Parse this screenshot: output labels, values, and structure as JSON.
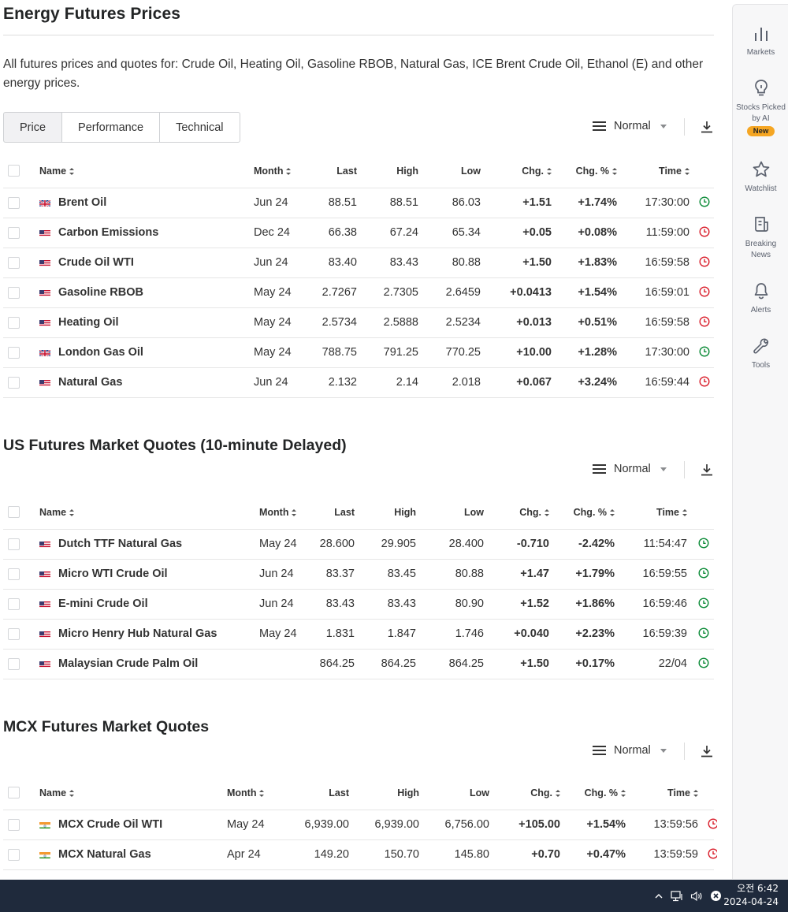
{
  "page": {
    "title": "Energy Futures Prices",
    "description": "All futures prices and quotes for: Crude Oil, Heating Oil, Gasoline RBOB, Natural Gas, ICE Brent Crude Oil, Ethanol (E) and other energy prices."
  },
  "tabs": [
    {
      "label": "Price",
      "active": true
    },
    {
      "label": "Performance",
      "active": false
    },
    {
      "label": "Technical",
      "active": false
    }
  ],
  "view_mode": "Normal",
  "columns": [
    "Name",
    "Month",
    "Last",
    "High",
    "Low",
    "Chg.",
    "Chg. %",
    "Time"
  ],
  "colors": {
    "up": "#0a8a36",
    "down": "#d91e2b",
    "open_clock": "#0a8a36",
    "closed_clock": "#d91e2b"
  },
  "energy": {
    "rows": [
      {
        "flag": "uk",
        "name": "Brent Oil",
        "month": "Jun 24",
        "last": "88.51",
        "high": "88.51",
        "low": "86.03",
        "chg": "+1.51",
        "chg_pct": "+1.74%",
        "time": "17:30:00",
        "dir": "up",
        "clock": "open"
      },
      {
        "flag": "us",
        "name": "Carbon Emissions",
        "month": "Dec 24",
        "last": "66.38",
        "high": "67.24",
        "low": "65.34",
        "chg": "+0.05",
        "chg_pct": "+0.08%",
        "time": "11:59:00",
        "dir": "up",
        "clock": "closed"
      },
      {
        "flag": "us",
        "name": "Crude Oil WTI",
        "month": "Jun 24",
        "last": "83.40",
        "high": "83.43",
        "low": "80.88",
        "chg": "+1.50",
        "chg_pct": "+1.83%",
        "time": "16:59:58",
        "dir": "up",
        "clock": "closed"
      },
      {
        "flag": "us",
        "name": "Gasoline RBOB",
        "month": "May 24",
        "last": "2.7267",
        "high": "2.7305",
        "low": "2.6459",
        "chg": "+0.0413",
        "chg_pct": "+1.54%",
        "time": "16:59:01",
        "dir": "up",
        "clock": "closed"
      },
      {
        "flag": "us",
        "name": "Heating Oil",
        "month": "May 24",
        "last": "2.5734",
        "high": "2.5888",
        "low": "2.5234",
        "chg": "+0.013",
        "chg_pct": "+0.51%",
        "time": "16:59:58",
        "dir": "up",
        "clock": "closed"
      },
      {
        "flag": "uk",
        "name": "London Gas Oil",
        "month": "May 24",
        "last": "788.75",
        "high": "791.25",
        "low": "770.25",
        "chg": "+10.00",
        "chg_pct": "+1.28%",
        "time": "17:30:00",
        "dir": "up",
        "clock": "open"
      },
      {
        "flag": "us",
        "name": "Natural Gas",
        "month": "Jun 24",
        "last": "2.132",
        "high": "2.14",
        "low": "2.018",
        "chg": "+0.067",
        "chg_pct": "+3.24%",
        "time": "16:59:44",
        "dir": "up",
        "clock": "closed"
      }
    ]
  },
  "us_section": {
    "title": "US Futures Market Quotes (10-minute Delayed)",
    "rows": [
      {
        "flag": "us",
        "name": "Dutch TTF Natural Gas",
        "month": "May 24",
        "last": "28.600",
        "high": "29.905",
        "low": "28.400",
        "chg": "-0.710",
        "chg_pct": "-2.42%",
        "time": "11:54:47",
        "dir": "down",
        "clock": "open"
      },
      {
        "flag": "us",
        "name": "Micro WTI Crude Oil",
        "month": "Jun 24",
        "last": "83.37",
        "high": "83.45",
        "low": "80.88",
        "chg": "+1.47",
        "chg_pct": "+1.79%",
        "time": "16:59:55",
        "dir": "up",
        "clock": "open"
      },
      {
        "flag": "us",
        "name": "E-mini Crude Oil",
        "month": "Jun 24",
        "last": "83.43",
        "high": "83.43",
        "low": "80.90",
        "chg": "+1.52",
        "chg_pct": "+1.86%",
        "time": "16:59:46",
        "dir": "up",
        "clock": "open"
      },
      {
        "flag": "us",
        "name": "Micro Henry Hub Natural Gas",
        "month": "May 24",
        "last": "1.831",
        "high": "1.847",
        "low": "1.746",
        "chg": "+0.040",
        "chg_pct": "+2.23%",
        "time": "16:59:39",
        "dir": "up",
        "clock": "open"
      },
      {
        "flag": "us",
        "name": "Malaysian Crude Palm Oil",
        "month": "",
        "last": "864.25",
        "high": "864.25",
        "low": "864.25",
        "chg": "+1.50",
        "chg_pct": "+0.17%",
        "time": "22/04",
        "dir": "up",
        "clock": "open"
      }
    ]
  },
  "mcx_section": {
    "title": "MCX Futures Market Quotes",
    "rows": [
      {
        "flag": "in",
        "name": "MCX Crude Oil WTI",
        "month": "May 24",
        "last": "6,939.00",
        "high": "6,939.00",
        "low": "6,756.00",
        "chg": "+105.00",
        "chg_pct": "+1.54%",
        "time": "13:59:56",
        "dir": "up",
        "clock": "closed"
      },
      {
        "flag": "in",
        "name": "MCX Natural Gas",
        "month": "Apr 24",
        "last": "149.20",
        "high": "150.70",
        "low": "145.80",
        "chg": "+0.70",
        "chg_pct": "+0.47%",
        "time": "13:59:59",
        "dir": "up",
        "clock": "closed"
      }
    ]
  },
  "sidebar": {
    "items": [
      {
        "label": "Markets",
        "icon": "bar-chart-icon"
      },
      {
        "label": "Stocks Picked by AI",
        "icon": "lightbulb-icon",
        "badge": "New"
      },
      {
        "label": "Watchlist",
        "icon": "star-icon"
      },
      {
        "label": "Breaking News",
        "icon": "news-icon"
      },
      {
        "label": "Alerts",
        "icon": "bell-icon"
      },
      {
        "label": "Tools",
        "icon": "wrench-icon"
      }
    ]
  },
  "taskbar": {
    "time": "오전 6:42",
    "date": "2024-04-24"
  }
}
